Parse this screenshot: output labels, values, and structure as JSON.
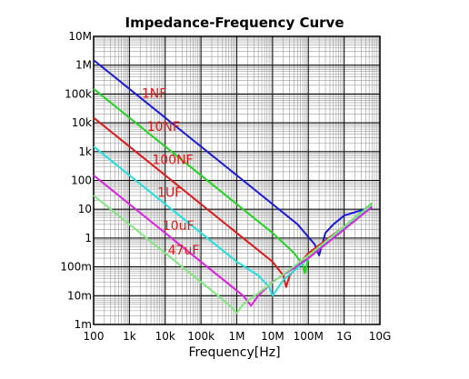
{
  "chart_data": {
    "type": "line",
    "title": "Impedance-Frequency Curve",
    "xlabel": "Frequency[Hz]",
    "ylabel": "",
    "x_scale": "log",
    "y_scale": "log",
    "xlim": [
      100,
      10000000000
    ],
    "ylim": [
      0.001,
      10000000
    ],
    "grid": true,
    "x_ticks": [
      {
        "value": 100,
        "label": "100"
      },
      {
        "value": 1000,
        "label": "1k"
      },
      {
        "value": 10000,
        "label": "10k"
      },
      {
        "value": 100000,
        "label": "100k"
      },
      {
        "value": 1000000,
        "label": "1M"
      },
      {
        "value": 10000000,
        "label": "10M"
      },
      {
        "value": 100000000,
        "label": "100M"
      },
      {
        "value": 1000000000,
        "label": "1G"
      },
      {
        "value": 10000000000,
        "label": "10G"
      }
    ],
    "y_ticks": [
      {
        "value": 0.001,
        "label": "1m"
      },
      {
        "value": 0.01,
        "label": "10m"
      },
      {
        "value": 0.1,
        "label": "100m"
      },
      {
        "value": 1,
        "label": "1"
      },
      {
        "value": 10,
        "label": "10"
      },
      {
        "value": 100,
        "label": "100"
      },
      {
        "value": 1000,
        "label": "1k"
      },
      {
        "value": 10000,
        "label": "10k"
      },
      {
        "value": 100000,
        "label": "100k"
      },
      {
        "value": 1000000,
        "label": "1M"
      },
      {
        "value": 10000000,
        "label": "10M"
      }
    ],
    "series": [
      {
        "name": "1NF",
        "color": "#1a1adc",
        "x": [
          100,
          1000000,
          10000000,
          50000000,
          150000000,
          200000000,
          300000000,
          500000000,
          1000000000,
          6000000000
        ],
        "y": [
          1500000,
          150,
          15,
          3,
          0.6,
          0.25,
          1.5,
          3,
          6,
          12
        ]
      },
      {
        "name": "10NF",
        "color": "#22d422",
        "x": [
          100,
          1000000,
          10000000,
          40000000,
          70000000,
          80000000,
          100000000,
          1000000000,
          6000000000
        ],
        "y": [
          150000,
          15,
          1.5,
          0.3,
          0.12,
          0.06,
          0.2,
          2.5,
          16
        ]
      },
      {
        "name": "100NF",
        "color": "#e01818",
        "x": [
          100,
          1000000,
          10000000,
          20000000,
          24000000,
          30000000,
          100000000,
          1000000000,
          6000000000
        ],
        "y": [
          15000,
          1.5,
          0.15,
          0.05,
          0.02,
          0.05,
          0.3,
          2.5,
          15
        ]
      },
      {
        "name": "1UF",
        "color": "#20e0e0",
        "x": [
          100,
          1000000,
          4000000,
          8000000,
          10000000,
          20000000,
          100000000,
          1000000000,
          6000000000
        ],
        "y": [
          1500,
          0.15,
          0.05,
          0.02,
          0.01,
          0.035,
          0.2,
          2.2,
          14
        ]
      },
      {
        "name": "10uF",
        "color": "#e020e0",
        "x": [
          100,
          500000,
          1500000,
          2500000,
          4000000,
          10000000,
          100000000,
          1000000000,
          6000000000
        ],
        "y": [
          150,
          0.03,
          0.01,
          0.0045,
          0.01,
          0.03,
          0.2,
          2,
          12
        ]
      },
      {
        "name": "47uF",
        "color": "#80e880",
        "x": [
          100,
          300000,
          700000,
          1000000,
          1500000,
          5000000,
          100000000,
          1000000000,
          6000000000
        ],
        "y": [
          30,
          0.01,
          0.004,
          0.0025,
          0.005,
          0.015,
          0.25,
          2.5,
          15
        ]
      }
    ]
  }
}
